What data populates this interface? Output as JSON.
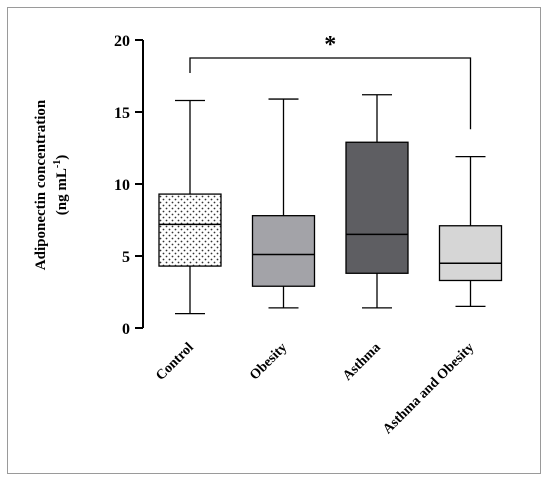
{
  "chart_data": {
    "type": "box",
    "ylabel_line1": "Adiponectin concentration",
    "ylabel_line2_prefix": "(ng mL",
    "ylabel_line2_sup": "-1",
    "ylabel_line2_suffix": ")",
    "ylim": [
      0,
      20
    ],
    "yticks": [
      "0",
      "5",
      "10",
      "15",
      "20"
    ],
    "grid": false,
    "categories": [
      "Control",
      "Obesity",
      "Asthma",
      "Asthma and Obesity"
    ],
    "boxes": [
      {
        "label": "Control",
        "min": 1.0,
        "q1": 4.3,
        "median": 7.2,
        "q3": 9.3,
        "max": 15.8,
        "fill": "#ffffff",
        "pattern": "dots"
      },
      {
        "label": "Obesity",
        "min": 1.4,
        "q1": 2.9,
        "median": 5.1,
        "q3": 7.8,
        "max": 15.9,
        "fill": "#a3a3a8",
        "pattern": "none"
      },
      {
        "label": "Asthma",
        "min": 1.4,
        "q1": 3.8,
        "median": 6.5,
        "q3": 12.9,
        "max": 16.2,
        "fill": "#5e5e62",
        "pattern": "none"
      },
      {
        "label": "Asthma and Obesity",
        "min": 1.5,
        "q1": 3.3,
        "median": 4.5,
        "q3": 7.1,
        "max": 11.9,
        "fill": "#d6d6d6",
        "pattern": "none"
      }
    ],
    "significance": {
      "from": "Control",
      "to": "Asthma and Obesity",
      "label": "*"
    }
  },
  "colors": {
    "axis": "#000000",
    "frame": "#9a9a9a"
  }
}
